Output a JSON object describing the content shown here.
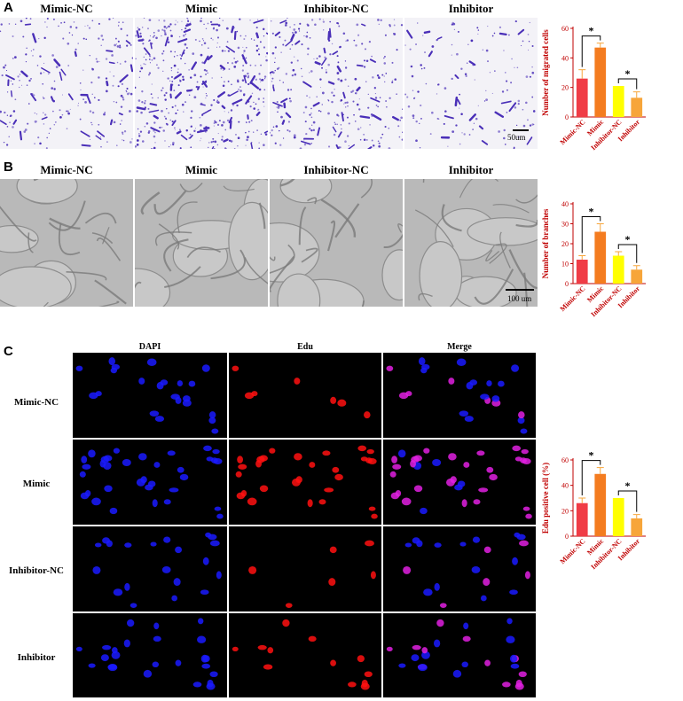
{
  "panel_a": {
    "letter": "A",
    "columns": [
      "Mimic-NC",
      "Mimic",
      "Inhibitor-NC",
      "Inhibitor"
    ],
    "scale_bar": "50um"
  },
  "panel_b": {
    "letter": "B",
    "columns": [
      "Mimic-NC",
      "Mimic",
      "Inhibitor-NC",
      "Inhibitor"
    ],
    "scale_bar": "100 um"
  },
  "panel_c": {
    "letter": "C",
    "columns": [
      "DAPI",
      "Edu",
      "Merge"
    ],
    "rows": [
      "Mimic-NC",
      "Mimic",
      "Inhibitor-NC",
      "Inhibitor"
    ]
  },
  "colors": {
    "label_red": "#c00000",
    "mimic_nc": "#f03c46",
    "mimic": "#f47c20",
    "inhibitor_nc": "#ffff00",
    "inhibitor": "#f7a53a",
    "error_bar": "#f7a53a",
    "crystal_violet": "#4a2fb8",
    "dapi": "#1a1aff",
    "edu": "#ff1010",
    "merge": "#e020e0"
  },
  "chart_data": [
    {
      "type": "bar",
      "categories": [
        "Mimic-NC",
        "Mimic",
        "Inhibitor-NC",
        "Inhibitor"
      ],
      "values": [
        26,
        47,
        21,
        13
      ],
      "errors": [
        6,
        3,
        0,
        4
      ],
      "ylabel": "Number of migrated cells",
      "ylim": [
        0,
        60
      ],
      "yticks": [
        0,
        20,
        40,
        60
      ],
      "significance": [
        {
          "pair": [
            0,
            1
          ],
          "label": "*"
        },
        {
          "pair": [
            2,
            3
          ],
          "label": "*"
        }
      ]
    },
    {
      "type": "bar",
      "categories": [
        "Mimic-NC",
        "Mimic",
        "Inhibitor-NC",
        "Inhibitor"
      ],
      "values": [
        12,
        26,
        14,
        7
      ],
      "errors": [
        2,
        4,
        2,
        2
      ],
      "ylabel": "Number of branches",
      "ylim": [
        0,
        40
      ],
      "yticks": [
        0,
        10,
        20,
        30,
        40
      ],
      "significance": [
        {
          "pair": [
            0,
            1
          ],
          "label": "*"
        },
        {
          "pair": [
            2,
            3
          ],
          "label": "*"
        }
      ]
    },
    {
      "type": "bar",
      "categories": [
        "Mimic-NC",
        "Mimic",
        "Inhibitor-NC",
        "Inhibitor"
      ],
      "values": [
        26,
        49,
        30,
        14
      ],
      "errors": [
        4,
        5,
        0,
        3
      ],
      "ylabel": "Edu positive cell (%)",
      "ylim": [
        0,
        60
      ],
      "yticks": [
        0,
        20,
        40,
        60
      ],
      "significance": [
        {
          "pair": [
            0,
            1
          ],
          "label": "*"
        },
        {
          "pair": [
            2,
            3
          ],
          "label": "*"
        }
      ]
    }
  ]
}
